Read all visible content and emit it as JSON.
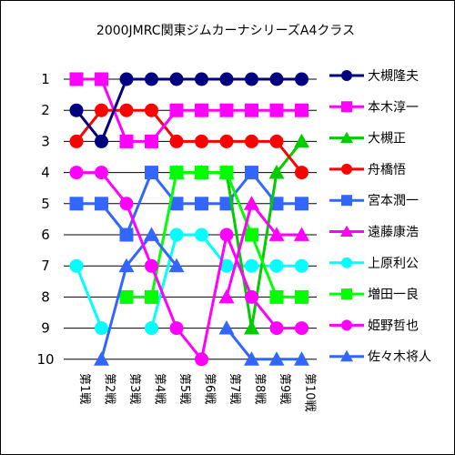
{
  "chart_data": {
    "type": "line",
    "title": "2000JMRC関東ジムカーナシリーズA4クラス",
    "xlabel": "",
    "ylabel": "",
    "categories": [
      "第1戦",
      "第2戦",
      "第3戦",
      "第4戦",
      "第5戦",
      "第6戦",
      "第7戦",
      "第8戦",
      "第9戦",
      "第10戦"
    ],
    "y_ticks": [
      "1",
      "2",
      "3",
      "4",
      "5",
      "6",
      "7",
      "8",
      "9",
      "10"
    ],
    "ylim": [
      1,
      10
    ],
    "y_inverted": true,
    "grid": "horizontal",
    "legend_position": "right",
    "series": [
      {
        "name": "大槻隆夫",
        "color": "#000080",
        "marker": "circle",
        "values": [
          2,
          3,
          1,
          1,
          1,
          1,
          1,
          1,
          1,
          1
        ]
      },
      {
        "name": "本木淳一",
        "color": "#FF00FF",
        "marker": "square",
        "values": [
          1,
          1,
          3,
          3,
          2,
          2,
          2,
          2,
          2,
          2
        ]
      },
      {
        "name": "大槻正",
        "color": "#00CC00",
        "marker": "triangle",
        "values": [
          null,
          null,
          null,
          null,
          4,
          4,
          4,
          9,
          4,
          3
        ]
      },
      {
        "name": "舟橋悟",
        "color": "#FF0000",
        "marker": "circle",
        "values": [
          3,
          2,
          2,
          2,
          3,
          3,
          3,
          3,
          3,
          4
        ]
      },
      {
        "name": "宮本潤一",
        "color": "#3366FF",
        "marker": "square",
        "values": [
          5,
          5,
          6,
          4,
          5,
          5,
          5,
          4,
          5,
          5
        ]
      },
      {
        "name": "遠藤康浩",
        "color": "#FF00FF",
        "marker": "triangle",
        "values": [
          null,
          null,
          null,
          null,
          null,
          null,
          8,
          5,
          6,
          6
        ]
      },
      {
        "name": "上原利公",
        "color": "#00FFFF",
        "marker": "circle",
        "values": [
          7,
          9,
          null,
          9,
          6,
          6,
          7,
          7,
          7,
          7
        ]
      },
      {
        "name": "増田一良",
        "color": "#00FF00",
        "marker": "square",
        "values": [
          null,
          null,
          8,
          8,
          4,
          4,
          4,
          6,
          8,
          8
        ]
      },
      {
        "name": "姫野哲也",
        "color": "#FF00FF",
        "marker": "circle",
        "values": [
          4,
          4,
          5,
          7,
          9,
          10,
          6,
          8,
          9,
          9
        ]
      },
      {
        "name": "佐々木将人",
        "color": "#3366FF",
        "marker": "triangle",
        "values": [
          null,
          10,
          7,
          6,
          7,
          null,
          9,
          10,
          10,
          10
        ]
      }
    ]
  }
}
